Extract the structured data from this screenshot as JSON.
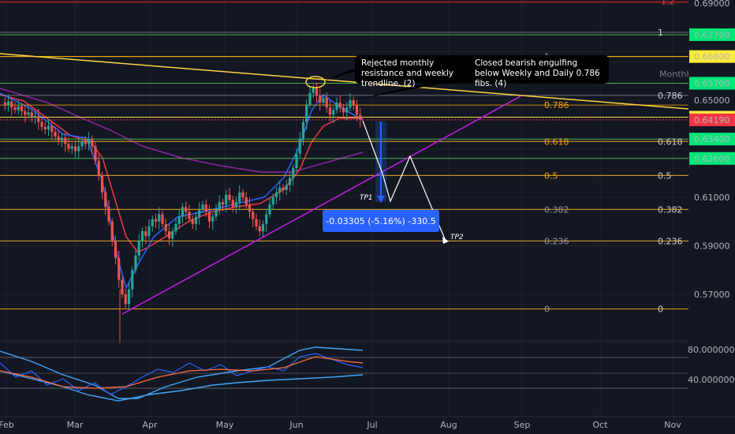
{
  "chart_data": {
    "type": "candlestick",
    "symbol_context": "Annotated price chart with Fibonacci retracements, trendlines and an oscillator panel",
    "y_range": [
      0.55,
      0.69
    ],
    "price_ticks": [
      "0.69000",
      "0.65000",
      "0.61000",
      "0.59000",
      "0.57000"
    ],
    "x_ticks": [
      "Feb",
      "Mar",
      "Apr",
      "May",
      "Jun",
      "Jul",
      "Aug",
      "Sep",
      "Oct",
      "Nov"
    ],
    "horizontal_levels": [
      {
        "label": "0.67700",
        "price": 0.677,
        "color": "#00e676",
        "line": "#4caf50"
      },
      {
        "label": "0.66800",
        "price": 0.668,
        "color": "#ffeb3b",
        "line": "#e0c200"
      },
      {
        "label": "0.65700",
        "price": 0.657,
        "color": "#00e676",
        "line": "#4caf50"
      },
      {
        "label": "0.64300",
        "price": 0.643,
        "color": "#ffeb3b",
        "line": "#ffd54f"
      },
      {
        "label": "0.64190",
        "price": 0.6419,
        "color": "#f23645",
        "line": "#f23645"
      },
      {
        "label": "0.63400",
        "price": 0.634,
        "color": "#00e676",
        "line": "#4caf50"
      },
      {
        "label": "0.62600",
        "price": 0.626,
        "color": "#00e676",
        "line": "#4caf50"
      }
    ],
    "fib_sets": [
      {
        "name": "weekly",
        "levels": [
          {
            "label": "1",
            "price": 0.678
          },
          {
            "label": "0.786",
            "price": 0.652
          },
          {
            "label": "0.618",
            "price": 0.633
          },
          {
            "label": "0.5",
            "price": 0.619
          },
          {
            "label": "0.382",
            "price": 0.605
          },
          {
            "label": "0.236",
            "price": 0.592
          },
          {
            "label": "0",
            "price": 0.564
          }
        ]
      },
      {
        "name": "daily",
        "levels": [
          {
            "label": "1",
            "price": 0.668
          },
          {
            "label": "0.786",
            "price": 0.648
          },
          {
            "label": "0.618",
            "price": 0.633
          },
          {
            "label": "0.5",
            "price": 0.619
          },
          {
            "label": "0.382",
            "price": 0.605
          },
          {
            "label": "0.236",
            "price": 0.592
          },
          {
            "label": "0",
            "price": 0.564
          }
        ]
      }
    ],
    "top_fib_label": "1.2",
    "monthly_label": "Monthly",
    "oscillator": {
      "ticks": [
        "80.000000",
        "40.000000"
      ],
      "ylim": [
        0,
        100
      ]
    },
    "notes": [
      "Rejected monthly resistance and weekly trendline. (2)",
      "Closed bearish engulfing below Weekly and Daily 0.786 fibs. (4)"
    ],
    "measure": "-0.03305 (-5.16%) -330.5",
    "targets": [
      "TP1",
      "TP2"
    ]
  },
  "colors": {
    "background": "#131722",
    "up": "#26a69a",
    "down": "#ef5350",
    "ma_red": "#f23645",
    "ma_blue": "#2962ff",
    "ma_purple": "#9c27b0",
    "trend_yellow": "#f9d342",
    "trend_purple": "#c51ce8",
    "fib_weekly": "#9598a1",
    "fib_daily": "#f7a600"
  }
}
